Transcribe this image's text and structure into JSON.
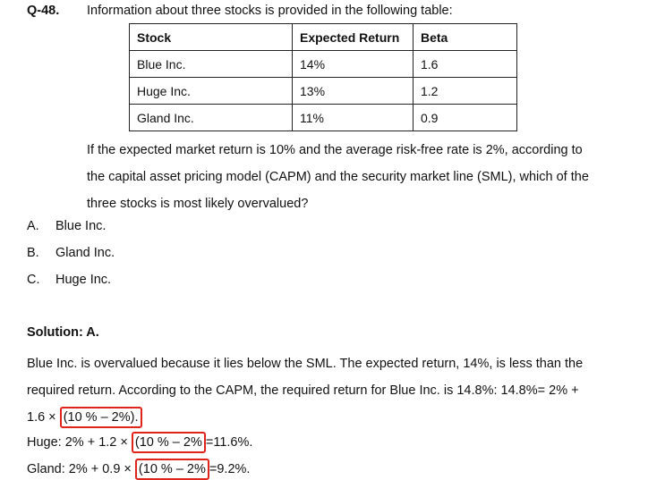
{
  "question": {
    "number": "Q-48.",
    "intro": "Information about three stocks is provided in the following table:",
    "table": {
      "headers": [
        "Stock",
        "Expected Return",
        "Beta"
      ],
      "rows": [
        [
          "Blue Inc.",
          "14%",
          "1.6"
        ],
        [
          "Huge Inc.",
          "13%",
          "1.2"
        ],
        [
          "Gland Inc.",
          "11%",
          "0.9"
        ]
      ]
    },
    "body_lines": [
      "If the expected market return is 10% and the average risk-free rate is 2%, according to",
      "the capital asset pricing model (CAPM) and the security market line (SML), which of the",
      "three stocks is most likely overvalued?"
    ],
    "options": [
      {
        "letter": "A.",
        "text": "Blue Inc."
      },
      {
        "letter": "B.",
        "text": "Gland Inc."
      },
      {
        "letter": "C.",
        "text": "Huge Inc."
      }
    ]
  },
  "solution": {
    "title": "Solution: A.",
    "lines": [
      "Blue Inc. is overvalued because it lies below the SML. The expected return, 14%, is less than the",
      "required return. According to the CAPM, the required return for Blue Inc. is 14.8%: 14.8%= 2% +"
    ],
    "blue_prefix": "1.6 ×",
    "blue_boxed": "(10 % – 2%).",
    "huge_prefix": "Huge: 2% + 1.2 ×",
    "huge_boxed": "(10 % – 2%",
    "huge_suffix": "=11.6%.",
    "gland_prefix": "Gland: 2% + 0.9 ×",
    "gland_boxed": "(10 % – 2%",
    "gland_suffix": "=9.2%.",
    "highlight_color": "#e0241b"
  }
}
